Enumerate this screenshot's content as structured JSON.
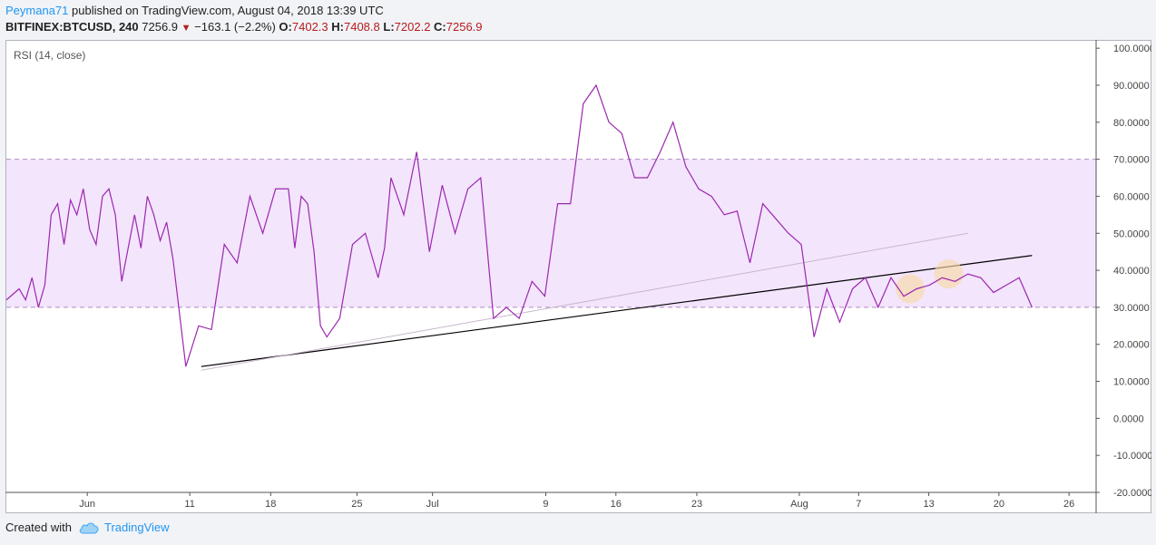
{
  "header": {
    "author": "Peymana71",
    "published_text": "published on TradingView.com, August 04, 2018 13:39 UTC",
    "symbol": "BITFINEX:BTCUSD, 240",
    "last": "7256.9",
    "change": "−163.1 (−2.2%)",
    "o_label": "O:",
    "o_val": "7402.3",
    "h_label": "H:",
    "h_val": "7408.8",
    "l_label": "L:",
    "l_val": "7202.2",
    "c_label": "C:",
    "c_val": "7256.9"
  },
  "footer": {
    "created_with": "Created with",
    "brand": "TradingView"
  },
  "colors": {
    "rsi": "#9c27b0",
    "band": "#f3e5fc",
    "trend": "#000000",
    "trend_faint": "#c7b7cc",
    "highlight": "#f7d9a8"
  },
  "chart_data": {
    "type": "line",
    "indicator_label": "RSI (14, close)",
    "ylim": [
      -20,
      102
    ],
    "y_ticks": [
      "100.0000",
      "90.0000",
      "80.0000",
      "70.0000",
      "60.0000",
      "50.0000",
      "40.0000",
      "30.0000",
      "20.0000",
      "10.0000",
      "0.0000",
      "-10.0000",
      "-20.0000"
    ],
    "x_ticks": [
      "Jun",
      "11",
      "18",
      "25",
      "Jul",
      "9",
      "16",
      "23",
      "Aug",
      "7",
      "13",
      "20",
      "26"
    ],
    "band": [
      30,
      70
    ],
    "series": [
      {
        "x": [
          0,
          1,
          1.5,
          2,
          2.5,
          3,
          3.5,
          4,
          4.5,
          5,
          5.5,
          6,
          6.5,
          7,
          7.5,
          8,
          8.5,
          9,
          10,
          10.5,
          11,
          11.5,
          12,
          12.5,
          13,
          14,
          15,
          16,
          17,
          18,
          19,
          20,
          21,
          22,
          22.5,
          23,
          23.5,
          24,
          24.5,
          25,
          26,
          27,
          28,
          29,
          29.5,
          30,
          30.5,
          31,
          32,
          33,
          34,
          35,
          36,
          37,
          38,
          39,
          40,
          41,
          42,
          43,
          44,
          45,
          46,
          47,
          48,
          49,
          50,
          51,
          52,
          53,
          54,
          55,
          56,
          57,
          58,
          59,
          60,
          61,
          62,
          63,
          64,
          65,
          66,
          67,
          68,
          69,
          70,
          71,
          72,
          73,
          74,
          75,
          76,
          77,
          78,
          79,
          80
        ],
        "y": [
          32,
          35,
          32,
          38,
          30,
          36,
          55,
          58,
          47,
          59,
          55,
          62,
          51,
          47,
          60,
          62,
          55,
          37,
          55,
          46,
          60,
          55,
          48,
          53,
          43,
          14,
          25,
          24,
          47,
          42,
          60,
          50,
          62,
          62,
          46,
          60,
          58,
          45,
          25,
          22,
          27,
          47,
          50,
          38,
          46,
          65,
          60,
          55,
          72,
          45,
          63,
          50,
          62,
          65,
          27,
          30,
          27,
          37,
          33,
          58,
          58,
          85,
          90,
          80,
          77,
          65,
          65,
          72,
          80,
          68,
          62,
          60,
          55,
          56,
          42,
          58,
          54,
          50,
          47,
          22,
          35,
          26,
          35,
          38,
          30,
          38,
          33,
          35,
          36,
          38,
          37,
          39,
          38,
          34,
          36,
          38,
          30
        ]
      }
    ],
    "trendlines": [
      {
        "name": "support",
        "x1": 15.2,
        "y1": 14,
        "x2": 80,
        "y2": 44
      },
      {
        "name": "support-faint",
        "x1": 15.2,
        "y1": 13,
        "x2": 75,
        "y2": 50
      }
    ]
  }
}
